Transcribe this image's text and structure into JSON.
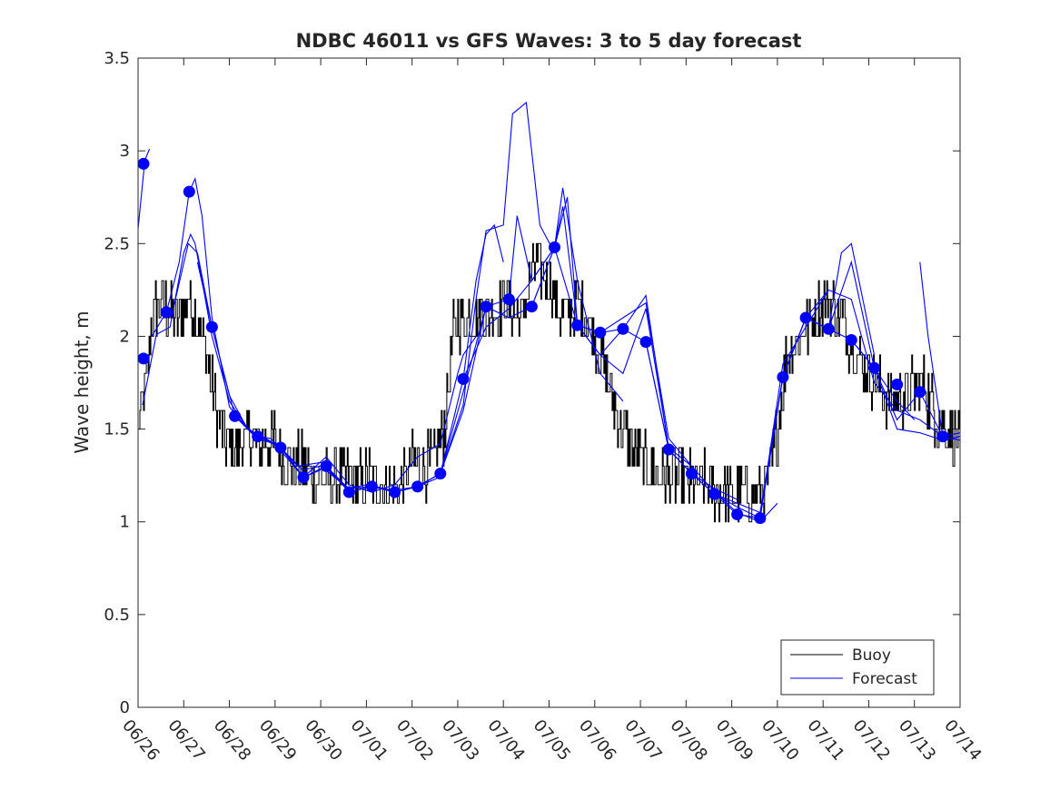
{
  "chart_data": {
    "type": "line",
    "title": "NDBC 46011 vs GFS Waves: 3 to 5 day forecast",
    "xlabel": "",
    "ylabel": "Wave height, m",
    "ylim": [
      0,
      3.5
    ],
    "xlim": [
      "06/26",
      "07/14"
    ],
    "yticks": [
      "0",
      "0.5",
      "1",
      "1.5",
      "2",
      "2.5",
      "3",
      "3.5"
    ],
    "xticks": [
      "06/26",
      "06/27",
      "06/28",
      "06/29",
      "06/30",
      "07/01",
      "07/02",
      "07/03",
      "07/04",
      "07/05",
      "07/06",
      "07/07",
      "07/08",
      "07/09",
      "07/10",
      "07/11",
      "07/12",
      "07/13",
      "07/14"
    ],
    "legend": {
      "placement": "bottom-right",
      "entries": [
        {
          "label": "Buoy",
          "color": "#000000"
        },
        {
          "label": "Forecast",
          "color": "#0000ff"
        }
      ]
    },
    "colors": {
      "buoy": "#000000",
      "forecast": "#0000ff",
      "marker": "#0000ff"
    },
    "buoy_anchors": {
      "x": [
        0,
        0.15,
        0.3,
        0.5,
        0.7,
        0.9,
        1.1,
        1.3,
        1.5,
        1.7,
        1.9,
        2.1,
        2.4,
        2.7,
        3.0,
        3.3,
        3.6,
        3.9,
        4.2,
        4.5,
        4.8,
        5.1,
        5.4,
        5.7,
        6.0,
        6.3,
        6.5,
        6.7,
        6.9,
        7.0,
        7.2,
        7.5,
        7.8,
        8.1,
        8.4,
        8.7,
        9.0,
        9.2,
        9.4,
        9.6,
        9.8,
        10.0,
        10.3,
        10.6,
        10.9,
        11.2,
        11.5,
        11.8,
        12.1,
        12.4,
        12.7,
        13.0,
        13.3,
        13.6,
        13.8,
        14.0,
        14.2,
        14.5,
        14.8,
        15.1,
        15.4,
        15.7,
        16.0,
        16.3,
        16.6,
        16.9,
        17.2,
        17.5,
        18.0
      ],
      "y": [
        1.5,
        1.7,
        2.1,
        2.2,
        2.1,
        2.1,
        2.2,
        2.1,
        1.9,
        1.6,
        1.45,
        1.4,
        1.45,
        1.4,
        1.45,
        1.3,
        1.3,
        1.25,
        1.2,
        1.25,
        1.2,
        1.25,
        1.2,
        1.2,
        1.3,
        1.3,
        1.35,
        1.5,
        2.0,
        2.1,
        2.1,
        2.1,
        2.15,
        2.2,
        2.1,
        2.4,
        2.3,
        2.15,
        2.1,
        2.2,
        2.1,
        2.0,
        1.75,
        1.5,
        1.35,
        1.3,
        1.25,
        1.25,
        1.2,
        1.2,
        1.15,
        1.15,
        1.15,
        1.15,
        1.2,
        1.5,
        1.9,
        2.0,
        2.1,
        2.2,
        2.1,
        1.9,
        1.8,
        1.7,
        1.65,
        1.7,
        1.75,
        1.55,
        1.45
      ]
    },
    "markers": {
      "x": [
        0.12,
        0.62,
        1.12,
        1.62,
        2.12,
        2.62,
        3.12,
        3.62,
        4.12,
        4.62,
        5.12,
        5.62,
        6.12,
        6.62,
        7.12,
        7.62,
        8.12,
        8.62,
        9.12,
        9.62,
        10.12,
        10.62,
        11.12,
        11.62,
        12.12,
        12.62,
        13.12,
        13.62,
        14.12,
        14.62,
        15.12,
        15.62,
        16.12,
        16.62,
        17.12,
        17.62
      ],
      "y": [
        1.88,
        2.13,
        2.78,
        2.05,
        1.57,
        1.46,
        1.4,
        1.24,
        1.3,
        1.16,
        1.19,
        1.16,
        1.19,
        1.26,
        1.77,
        2.16,
        2.2,
        2.16,
        2.48,
        2.06,
        2.02,
        2.04,
        1.97,
        1.39,
        1.26,
        1.15,
        1.04,
        1.02,
        1.78,
        2.1,
        2.04,
        1.98,
        1.83,
        1.74,
        1.7,
        1.46
      ]
    },
    "extra_marker": {
      "x": 0.12,
      "y": 2.93
    },
    "forecast_series": [
      {
        "x": [
          0.0,
          0.15,
          0.25
        ],
        "y": [
          2.58,
          2.95,
          3.01
        ]
      },
      {
        "x": [
          0.1,
          0.4,
          0.7,
          1.0,
          1.15,
          1.25,
          1.4,
          1.62,
          2.0,
          2.4,
          2.62,
          2.9,
          3.2,
          3.62,
          4.0
        ],
        "y": [
          1.63,
          2.01,
          2.05,
          2.45,
          2.55,
          2.5,
          2.3,
          2.0,
          1.65,
          1.5,
          1.46,
          1.45,
          1.38,
          1.24,
          1.28
        ]
      },
      {
        "x": [
          0.3,
          0.62,
          0.9,
          1.12,
          1.25,
          1.4,
          1.62,
          2.0,
          2.4,
          2.7,
          3.1,
          3.5,
          4.0,
          4.4,
          4.62
        ],
        "y": [
          2.0,
          2.13,
          2.4,
          2.78,
          2.85,
          2.65,
          2.1,
          1.62,
          1.5,
          1.46,
          1.4,
          1.3,
          1.32,
          1.22,
          1.17
        ]
      },
      {
        "x": [
          0.8,
          1.1,
          1.3,
          1.62,
          2.0,
          2.4,
          2.8,
          3.12,
          3.6,
          4.0,
          4.3,
          4.62,
          5.0,
          5.4,
          5.62
        ],
        "y": [
          2.18,
          2.5,
          2.45,
          2.05,
          1.68,
          1.5,
          1.45,
          1.4,
          1.28,
          1.3,
          1.24,
          1.18,
          1.2,
          1.18,
          1.16
        ]
      },
      {
        "x": [
          1.3,
          1.62,
          2.12,
          2.6,
          3.0,
          3.62,
          4.12,
          4.6,
          5.12,
          5.6,
          6.12,
          6.6
        ],
        "y": [
          2.4,
          2.05,
          1.57,
          1.45,
          1.42,
          1.24,
          1.3,
          1.18,
          1.19,
          1.17,
          1.19,
          1.24
        ]
      },
      {
        "x": [
          2.12,
          2.62,
          3.12,
          3.62,
          4.12,
          4.62,
          5.12,
          5.62,
          6.12,
          6.62,
          7.0,
          7.12,
          7.4
        ],
        "y": [
          1.57,
          1.46,
          1.4,
          1.24,
          1.35,
          1.2,
          1.16,
          1.2,
          1.35,
          1.42,
          1.8,
          1.9,
          2.0
        ]
      },
      {
        "x": [
          2.62,
          3.12,
          3.62,
          4.12,
          4.62,
          5.12,
          5.62,
          6.12,
          6.62,
          7.12,
          7.4,
          7.62,
          7.8,
          8.0
        ],
        "y": [
          1.46,
          1.4,
          1.24,
          1.3,
          1.16,
          1.19,
          1.16,
          1.19,
          1.26,
          1.77,
          2.3,
          2.55,
          2.6,
          2.4
        ]
      },
      {
        "x": [
          4.62,
          5.12,
          5.62,
          6.12,
          6.62,
          7.12,
          7.4,
          7.62,
          8.0,
          8.2,
          8.5,
          8.8,
          9.12
        ],
        "y": [
          1.16,
          1.19,
          1.16,
          1.19,
          1.26,
          1.63,
          2.2,
          2.57,
          2.6,
          3.2,
          3.26,
          2.6,
          2.45
        ]
      },
      {
        "x": [
          5.62,
          6.12,
          6.62,
          7.12,
          7.62,
          8.12,
          8.3,
          8.62,
          9.12,
          9.3,
          9.62,
          10.12,
          10.62
        ],
        "y": [
          1.16,
          1.19,
          1.26,
          1.6,
          2.16,
          2.2,
          2.65,
          2.3,
          2.48,
          2.8,
          2.3,
          1.8,
          1.65
        ]
      },
      {
        "x": [
          6.12,
          6.62,
          7.12,
          7.62,
          8.12,
          8.62,
          9.12,
          9.3,
          9.62,
          10.12,
          10.62,
          11.12,
          11.62,
          12.12
        ],
        "y": [
          1.19,
          1.26,
          1.7,
          2.16,
          2.1,
          2.16,
          2.48,
          2.7,
          2.06,
          1.9,
          1.8,
          2.15,
          1.4,
          1.3
        ]
      },
      {
        "x": [
          7.12,
          7.62,
          8.12,
          8.62,
          9.12,
          9.4,
          9.62,
          10.12,
          10.62,
          11.12,
          11.62,
          12.12,
          12.62,
          13.12
        ],
        "y": [
          1.77,
          2.05,
          2.15,
          2.3,
          2.48,
          2.75,
          2.06,
          1.9,
          2.04,
          2.22,
          1.39,
          1.26,
          1.18,
          1.12
        ]
      },
      {
        "x": [
          8.62,
          9.12,
          9.62,
          10.12,
          10.62,
          11.12,
          11.62,
          12.12,
          12.62,
          13.12,
          13.62,
          14.0
        ],
        "y": [
          2.16,
          2.48,
          2.06,
          2.02,
          2.1,
          2.18,
          1.45,
          1.3,
          1.16,
          1.05,
          1.0,
          1.1
        ]
      },
      {
        "x": [
          9.62,
          10.12,
          10.62,
          11.12,
          11.62,
          12.12,
          12.62,
          13.12,
          13.62,
          14.12,
          14.62,
          15.12
        ],
        "y": [
          2.06,
          2.02,
          2.04,
          1.97,
          1.39,
          1.26,
          1.15,
          1.1,
          1.05,
          1.78,
          2.1,
          2.25
        ]
      },
      {
        "x": [
          11.12,
          11.62,
          12.12,
          12.62,
          13.12,
          13.62,
          14.12,
          14.62,
          15.12,
          15.4,
          15.62,
          16.12
        ],
        "y": [
          1.97,
          1.39,
          1.26,
          1.15,
          1.08,
          1.02,
          1.78,
          2.1,
          2.04,
          2.45,
          2.5,
          1.9
        ]
      },
      {
        "x": [
          12.12,
          12.62,
          13.12,
          13.62,
          14.12,
          14.62,
          15.12,
          15.62,
          16.12,
          16.62,
          17.0
        ],
        "y": [
          1.26,
          1.15,
          1.04,
          1.02,
          1.78,
          2.1,
          2.04,
          2.4,
          1.83,
          1.65,
          1.55
        ]
      },
      {
        "x": [
          13.12,
          13.62,
          14.12,
          14.62,
          15.12,
          15.62,
          16.12,
          16.62,
          17.12,
          17.62
        ],
        "y": [
          1.04,
          1.02,
          1.85,
          2.05,
          2.25,
          2.2,
          1.75,
          1.6,
          1.55,
          1.46
        ]
      },
      {
        "x": [
          14.12,
          14.62,
          15.12,
          15.62,
          16.12,
          16.62,
          17.12,
          17.62,
          18.0
        ],
        "y": [
          1.78,
          2.1,
          2.04,
          1.98,
          1.83,
          1.55,
          1.7,
          1.46,
          1.48
        ]
      },
      {
        "x": [
          15.62,
          16.12,
          16.62,
          17.12,
          17.62,
          18.0
        ],
        "y": [
          1.98,
          1.83,
          1.5,
          1.48,
          1.44,
          1.46
        ]
      },
      {
        "x": [
          17.12,
          17.3,
          17.62,
          18.0
        ],
        "y": [
          2.4,
          2.0,
          1.46,
          1.44
        ]
      }
    ]
  }
}
